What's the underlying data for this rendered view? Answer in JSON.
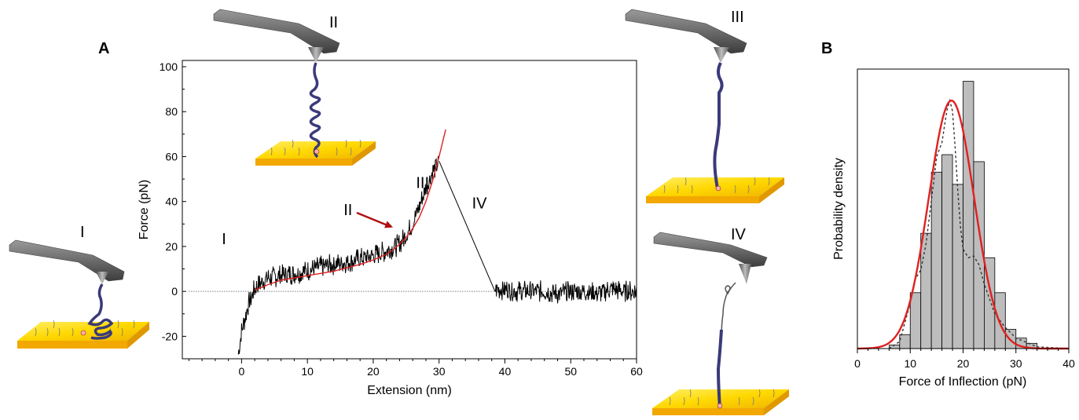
{
  "figure": {
    "panel_a_label": "A",
    "panel_b_label": "B"
  },
  "chart_data": [
    {
      "id": "A",
      "type": "line",
      "xlabel": "Extension (nm)",
      "ylabel": "Force (pN)",
      "xlim": [
        -9,
        60
      ],
      "ylim": [
        -30,
        100
      ],
      "xticks": [
        0,
        10,
        20,
        30,
        40,
        50,
        60
      ],
      "yticks": [
        -20,
        0,
        20,
        40,
        60,
        80,
        100
      ],
      "grid": false,
      "zero_line": true,
      "series": [
        {
          "role": "measured force-extension trace",
          "color": "#000000",
          "noise_pn": 5,
          "segments": [
            {
              "x": [
                -0.5,
                0,
                1,
                2,
                3,
                4
              ],
              "y": [
                -28,
                -18,
                -6,
                1,
                4,
                6
              ]
            },
            {
              "x": [
                4,
                6,
                8,
                10,
                12,
                14,
                16,
                18,
                20,
                22,
                24,
                25,
                26,
                27,
                28,
                29,
                30
              ],
              "y": [
                6,
                7,
                8,
                9,
                11,
                12,
                13,
                14.5,
                16,
                18,
                21,
                25,
                30,
                38,
                46,
                53,
                58
              ]
            },
            {
              "x": [
                30,
                38.5
              ],
              "y": [
                58,
                0
              ],
              "noise_pn": 0
            },
            {
              "x": [
                38.5,
                40,
                42,
                44,
                46,
                48,
                50,
                52,
                54,
                56,
                58,
                60
              ],
              "y": [
                1,
                1,
                0,
                0,
                0,
                -1,
                0,
                0,
                -1,
                1,
                0,
                0
              ]
            }
          ]
        },
        {
          "role": "model fit",
          "color": "#e02020",
          "x": [
            2,
            4,
            6,
            8,
            10,
            12,
            14,
            16,
            18,
            20,
            22,
            23,
            24,
            25,
            26,
            27,
            28,
            29,
            30,
            31
          ],
          "y": [
            0.5,
            3,
            5,
            6,
            7,
            8,
            9,
            10.5,
            12,
            14,
            16.5,
            18.5,
            21,
            24,
            28,
            33,
            40,
            49,
            60,
            72
          ]
        }
      ],
      "annotations": [
        {
          "text": "I",
          "x": -3,
          "y": 21
        },
        {
          "text": "II",
          "x": 15.5,
          "y": 34
        },
        {
          "text": "III",
          "x": 26.5,
          "y": 46
        },
        {
          "text": "IV",
          "x": 35,
          "y": 37
        }
      ],
      "arrow": {
        "color": "#b01010",
        "from": [
          17.5,
          35
        ],
        "to": [
          23,
          28.5
        ]
      }
    },
    {
      "id": "B",
      "type": "bar",
      "xlabel": "Force of Inflection (pN)",
      "ylabel": "Probability density",
      "xlim": [
        0,
        40
      ],
      "xticks": [
        0,
        10,
        20,
        30,
        40
      ],
      "bin_width": 2,
      "bin_edges": [
        6,
        8,
        10,
        12,
        14,
        16,
        18,
        20,
        22,
        24,
        26,
        28,
        30,
        32,
        34
      ],
      "values": [
        0.002,
        0.008,
        0.032,
        0.066,
        0.101,
        0.111,
        0.094,
        0.153,
        0.107,
        0.052,
        0.032,
        0.011,
        0.006,
        0.003
      ],
      "bar_color": "#bdbdbd",
      "gaussian_fit": {
        "mean": 17.8,
        "sd": 4.3,
        "peak": 0.142,
        "color": "#e02020"
      },
      "dashed_fit": {
        "color": "#333333",
        "x": [
          6,
          8,
          10,
          11,
          12,
          13,
          14,
          15,
          16,
          16.5,
          17,
          17.5,
          18,
          18.5,
          19,
          19.5,
          20,
          21,
          22,
          23,
          24,
          26,
          28,
          30,
          34,
          40
        ],
        "y": [
          0,
          0.004,
          0.026,
          0.04,
          0.045,
          0.06,
          0.085,
          0.11,
          0.118,
          0.128,
          0.137,
          0.142,
          0.136,
          0.115,
          0.09,
          0.07,
          0.057,
          0.052,
          0.053,
          0.048,
          0.037,
          0.02,
          0.012,
          0.006,
          0.001,
          0
        ]
      },
      "ylim": [
        0,
        0.16
      ]
    }
  ],
  "illustrations": [
    {
      "stage": "I",
      "label": "I"
    },
    {
      "stage": "II",
      "label": "II"
    },
    {
      "stage": "III",
      "label": "III"
    },
    {
      "stage": "IV",
      "label": "IV"
    }
  ],
  "colors": {
    "cantilever": "#6b6b6b",
    "cantilever_dark": "#3c3c3c",
    "substrate_top": "#ffe000",
    "substrate_side": "#f2a800",
    "protein": "#3a3a7a",
    "fit": "#e02020"
  }
}
